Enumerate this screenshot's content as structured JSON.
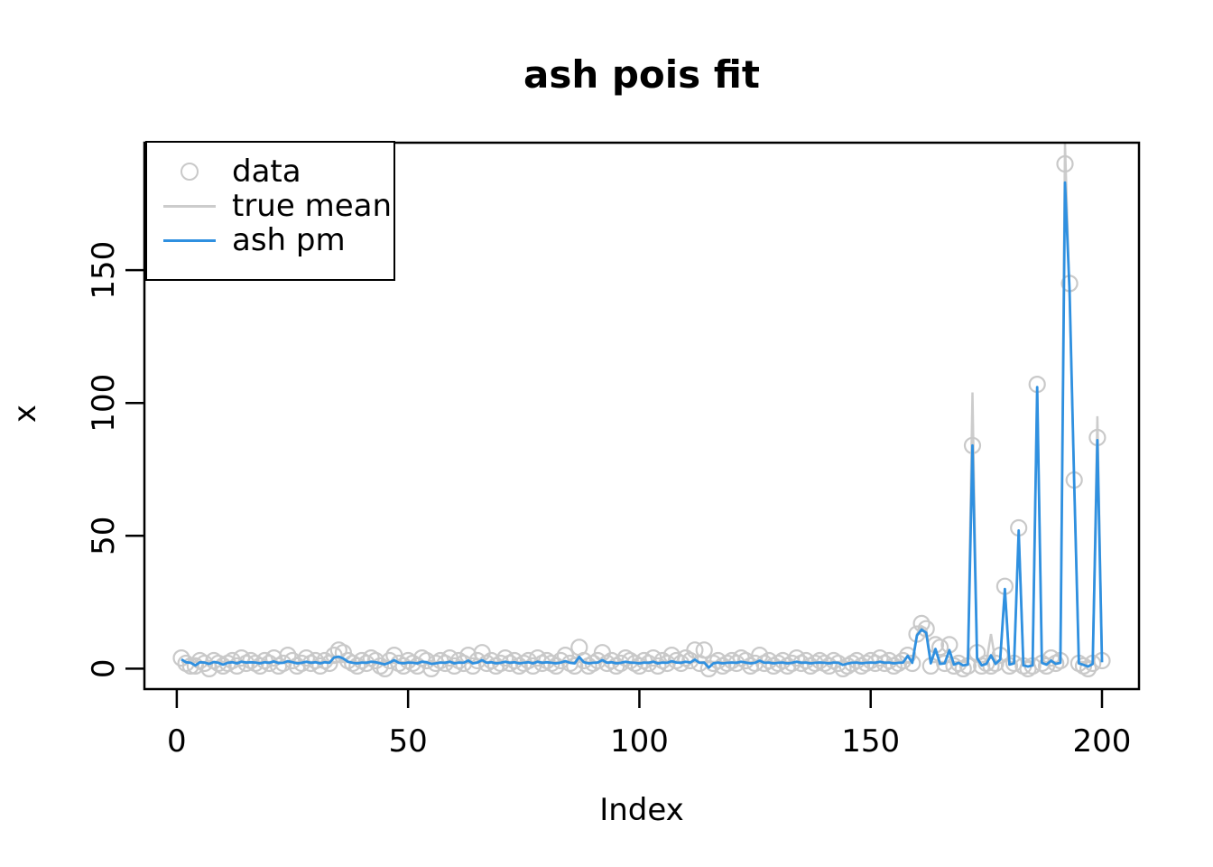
{
  "chart_data": {
    "type": "line",
    "title": "ash pois fit",
    "xlabel": "Index",
    "ylabel": "x",
    "x_ticks": [
      0,
      50,
      100,
      150,
      200
    ],
    "y_ticks": [
      0,
      50,
      100,
      150
    ],
    "xlim": [
      -7,
      208
    ],
    "ylim": [
      -7.7,
      198
    ],
    "grid": false,
    "legend_position": "top-left",
    "legend": [
      {
        "label": "data",
        "type": "point",
        "color": "#c9c9c9"
      },
      {
        "label": "true mean",
        "type": "line",
        "color": "#cccccc"
      },
      {
        "label": "ash pm",
        "type": "line",
        "color": "#2f90e0"
      }
    ],
    "colors": {
      "data": "#c9c9c9",
      "true_mean": "#cccccc",
      "ash_pm": "#2f90e0",
      "axis": "#000000"
    },
    "series": {
      "data_points": [
        4,
        2,
        1,
        1,
        3,
        2,
        0,
        3,
        2,
        1,
        2,
        3,
        1,
        4,
        2,
        3,
        2,
        1,
        3,
        2,
        4,
        1,
        2,
        5,
        3,
        1,
        2,
        4,
        2,
        3,
        1,
        3,
        2,
        5,
        7,
        6,
        3,
        2,
        1,
        3,
        2,
        4,
        3,
        1,
        0,
        3,
        5,
        2,
        1,
        3,
        2,
        1,
        4,
        3,
        0,
        2,
        3,
        2,
        4,
        1,
        3,
        2,
        5,
        1,
        3,
        6,
        2,
        3,
        1,
        2,
        4,
        2,
        3,
        1,
        2,
        3,
        1,
        4,
        2,
        3,
        2,
        1,
        3,
        5,
        2,
        1,
        8,
        3,
        1,
        2,
        3,
        6,
        2,
        3,
        1,
        2,
        4,
        3,
        2,
        1,
        3,
        2,
        4,
        1,
        3,
        2,
        5,
        3,
        2,
        4,
        3,
        7,
        2,
        7,
        0,
        2,
        3,
        1,
        2,
        3,
        2,
        4,
        3,
        1,
        2,
        5,
        2,
        3,
        1,
        2,
        3,
        1,
        2,
        4,
        2,
        3,
        1,
        2,
        3,
        2,
        1,
        3,
        2,
        0,
        1,
        2,
        3,
        1,
        2,
        3,
        2,
        4,
        2,
        3,
        1,
        2,
        3,
        5,
        2,
        13,
        17,
        15,
        1,
        9,
        8,
        2,
        9,
        1,
        2,
        0,
        1,
        84,
        6,
        1,
        2,
        1,
        2,
        5,
        31,
        1,
        2,
        53,
        1,
        0,
        1,
        107,
        2,
        1,
        4,
        2,
        3,
        190,
        145,
        71,
        2,
        1,
        0,
        2,
        87,
        3
      ],
      "true_mean": {
        "base": 2.5,
        "overrides": {
          "160": 13,
          "161": 16,
          "162": 15,
          "172": 104,
          "176": 13,
          "179": 30,
          "182": 52,
          "186": 106,
          "192": 198,
          "193": 140,
          "194": 70,
          "199": 95
        }
      },
      "ash_pm": [
        3.5,
        2.4,
        2.2,
        1.2,
        2.4,
        2.3,
        1.8,
        2.5,
        2.2,
        1.5,
        2.2,
        2.4,
        2.0,
        2.6,
        2.3,
        2.4,
        2.3,
        2.0,
        2.4,
        2.2,
        2.7,
        2.1,
        2.2,
        2.8,
        2.4,
        2.0,
        2.2,
        2.6,
        2.2,
        2.4,
        2.0,
        2.4,
        2.2,
        4.2,
        4.5,
        3.8,
        2.6,
        2.2,
        2.0,
        2.3,
        2.2,
        2.6,
        2.4,
        2.0,
        1.6,
        2.3,
        3.2,
        2.2,
        2.0,
        2.3,
        2.2,
        2.0,
        2.6,
        2.4,
        1.8,
        2.0,
        2.3,
        2.2,
        2.6,
        2.0,
        2.3,
        2.2,
        3.0,
        2.0,
        2.3,
        3.2,
        2.2,
        2.4,
        2.0,
        2.2,
        2.6,
        2.2,
        2.4,
        2.0,
        2.2,
        2.4,
        2.0,
        2.6,
        2.2,
        2.4,
        2.2,
        2.0,
        2.3,
        2.8,
        2.2,
        2.0,
        4.4,
        2.4,
        2.0,
        2.2,
        2.3,
        3.2,
        2.2,
        2.4,
        2.0,
        2.2,
        2.6,
        2.3,
        2.2,
        2.0,
        2.3,
        2.2,
        2.6,
        2.0,
        2.3,
        2.2,
        2.8,
        2.3,
        2.2,
        2.6,
        2.3,
        3.4,
        2.2,
        2.3,
        0.4,
        2.0,
        2.3,
        2.0,
        2.2,
        2.3,
        2.2,
        2.6,
        2.3,
        2.0,
        2.2,
        3.0,
        2.2,
        2.3,
        2.0,
        2.2,
        2.3,
        2.0,
        2.2,
        2.6,
        2.2,
        2.3,
        2.0,
        2.2,
        2.3,
        2.2,
        2.0,
        2.3,
        2.2,
        1.4,
        1.9,
        2.2,
        2.3,
        2.0,
        2.2,
        2.3,
        2.2,
        2.6,
        2.2,
        2.3,
        2.0,
        2.2,
        2.3,
        4.8,
        2.2,
        12.5,
        14.7,
        13.5,
        2.0,
        7.4,
        1.8,
        2.0,
        7.0,
        1.5,
        2.2,
        1.2,
        1.5,
        84,
        4.0,
        1.2,
        1.8,
        5.0,
        1.8,
        3.5,
        30,
        1.5,
        2.0,
        52,
        1.2,
        0.8,
        1.2,
        106,
        2.2,
        1.5,
        3.0,
        1.8,
        2.2,
        183,
        142,
        70,
        2.0,
        1.4,
        0.8,
        1.8,
        86,
        2.4
      ]
    }
  }
}
